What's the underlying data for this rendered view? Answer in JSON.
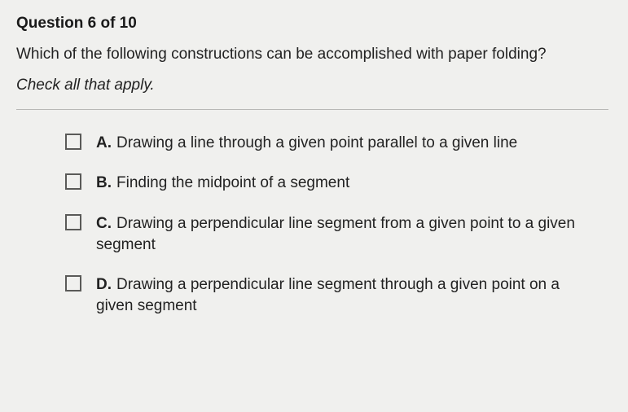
{
  "header": {
    "question_label": "Question 6 of 10"
  },
  "question": {
    "prompt": "Which of the following constructions can be accomplished with paper folding?",
    "instruction": "Check all that apply."
  },
  "options": [
    {
      "letter": "A.",
      "text": "Drawing a line through a given point parallel to a given line"
    },
    {
      "letter": "B.",
      "text": "Finding the midpoint of a segment"
    },
    {
      "letter": "C.",
      "text": "Drawing a perpendicular line segment from a given point to a given segment"
    },
    {
      "letter": "D.",
      "text": "Drawing a perpendicular line segment through a given point on a given segment"
    }
  ],
  "colors": {
    "background": "#f0f0ee",
    "text": "#222",
    "divider": "#b8b8b6",
    "checkbox_border": "#5a5a58"
  },
  "typography": {
    "base_fontsize": 19,
    "font_family": "Arial"
  }
}
